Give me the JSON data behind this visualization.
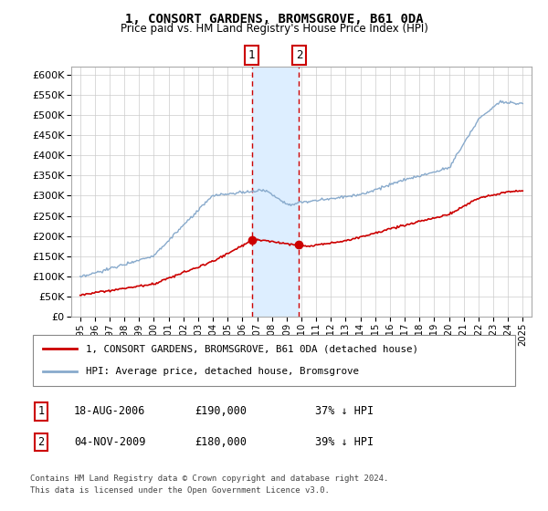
{
  "title": "1, CONSORT GARDENS, BROMSGROVE, B61 0DA",
  "subtitle": "Price paid vs. HM Land Registry's House Price Index (HPI)",
  "ylim": [
    0,
    620000
  ],
  "yticks": [
    0,
    50000,
    100000,
    150000,
    200000,
    250000,
    300000,
    350000,
    400000,
    450000,
    500000,
    550000,
    600000
  ],
  "sale1_date": "18-AUG-2006",
  "sale1_price": 190000,
  "sale1_pct": "37%",
  "sale2_date": "04-NOV-2009",
  "sale2_price": 180000,
  "sale2_pct": "39%",
  "legend_line1": "1, CONSORT GARDENS, BROMSGROVE, B61 0DA (detached house)",
  "legend_line2": "HPI: Average price, detached house, Bromsgrove",
  "footnote1": "Contains HM Land Registry data © Crown copyright and database right 2024.",
  "footnote2": "This data is licensed under the Open Government Licence v3.0.",
  "red_color": "#cc0000",
  "blue_color": "#88aacc",
  "shade_color": "#ddeeff",
  "highlight_x1": 2006.63,
  "highlight_x2": 2009.84,
  "xlim_left": 1994.4,
  "xlim_right": 2025.6
}
